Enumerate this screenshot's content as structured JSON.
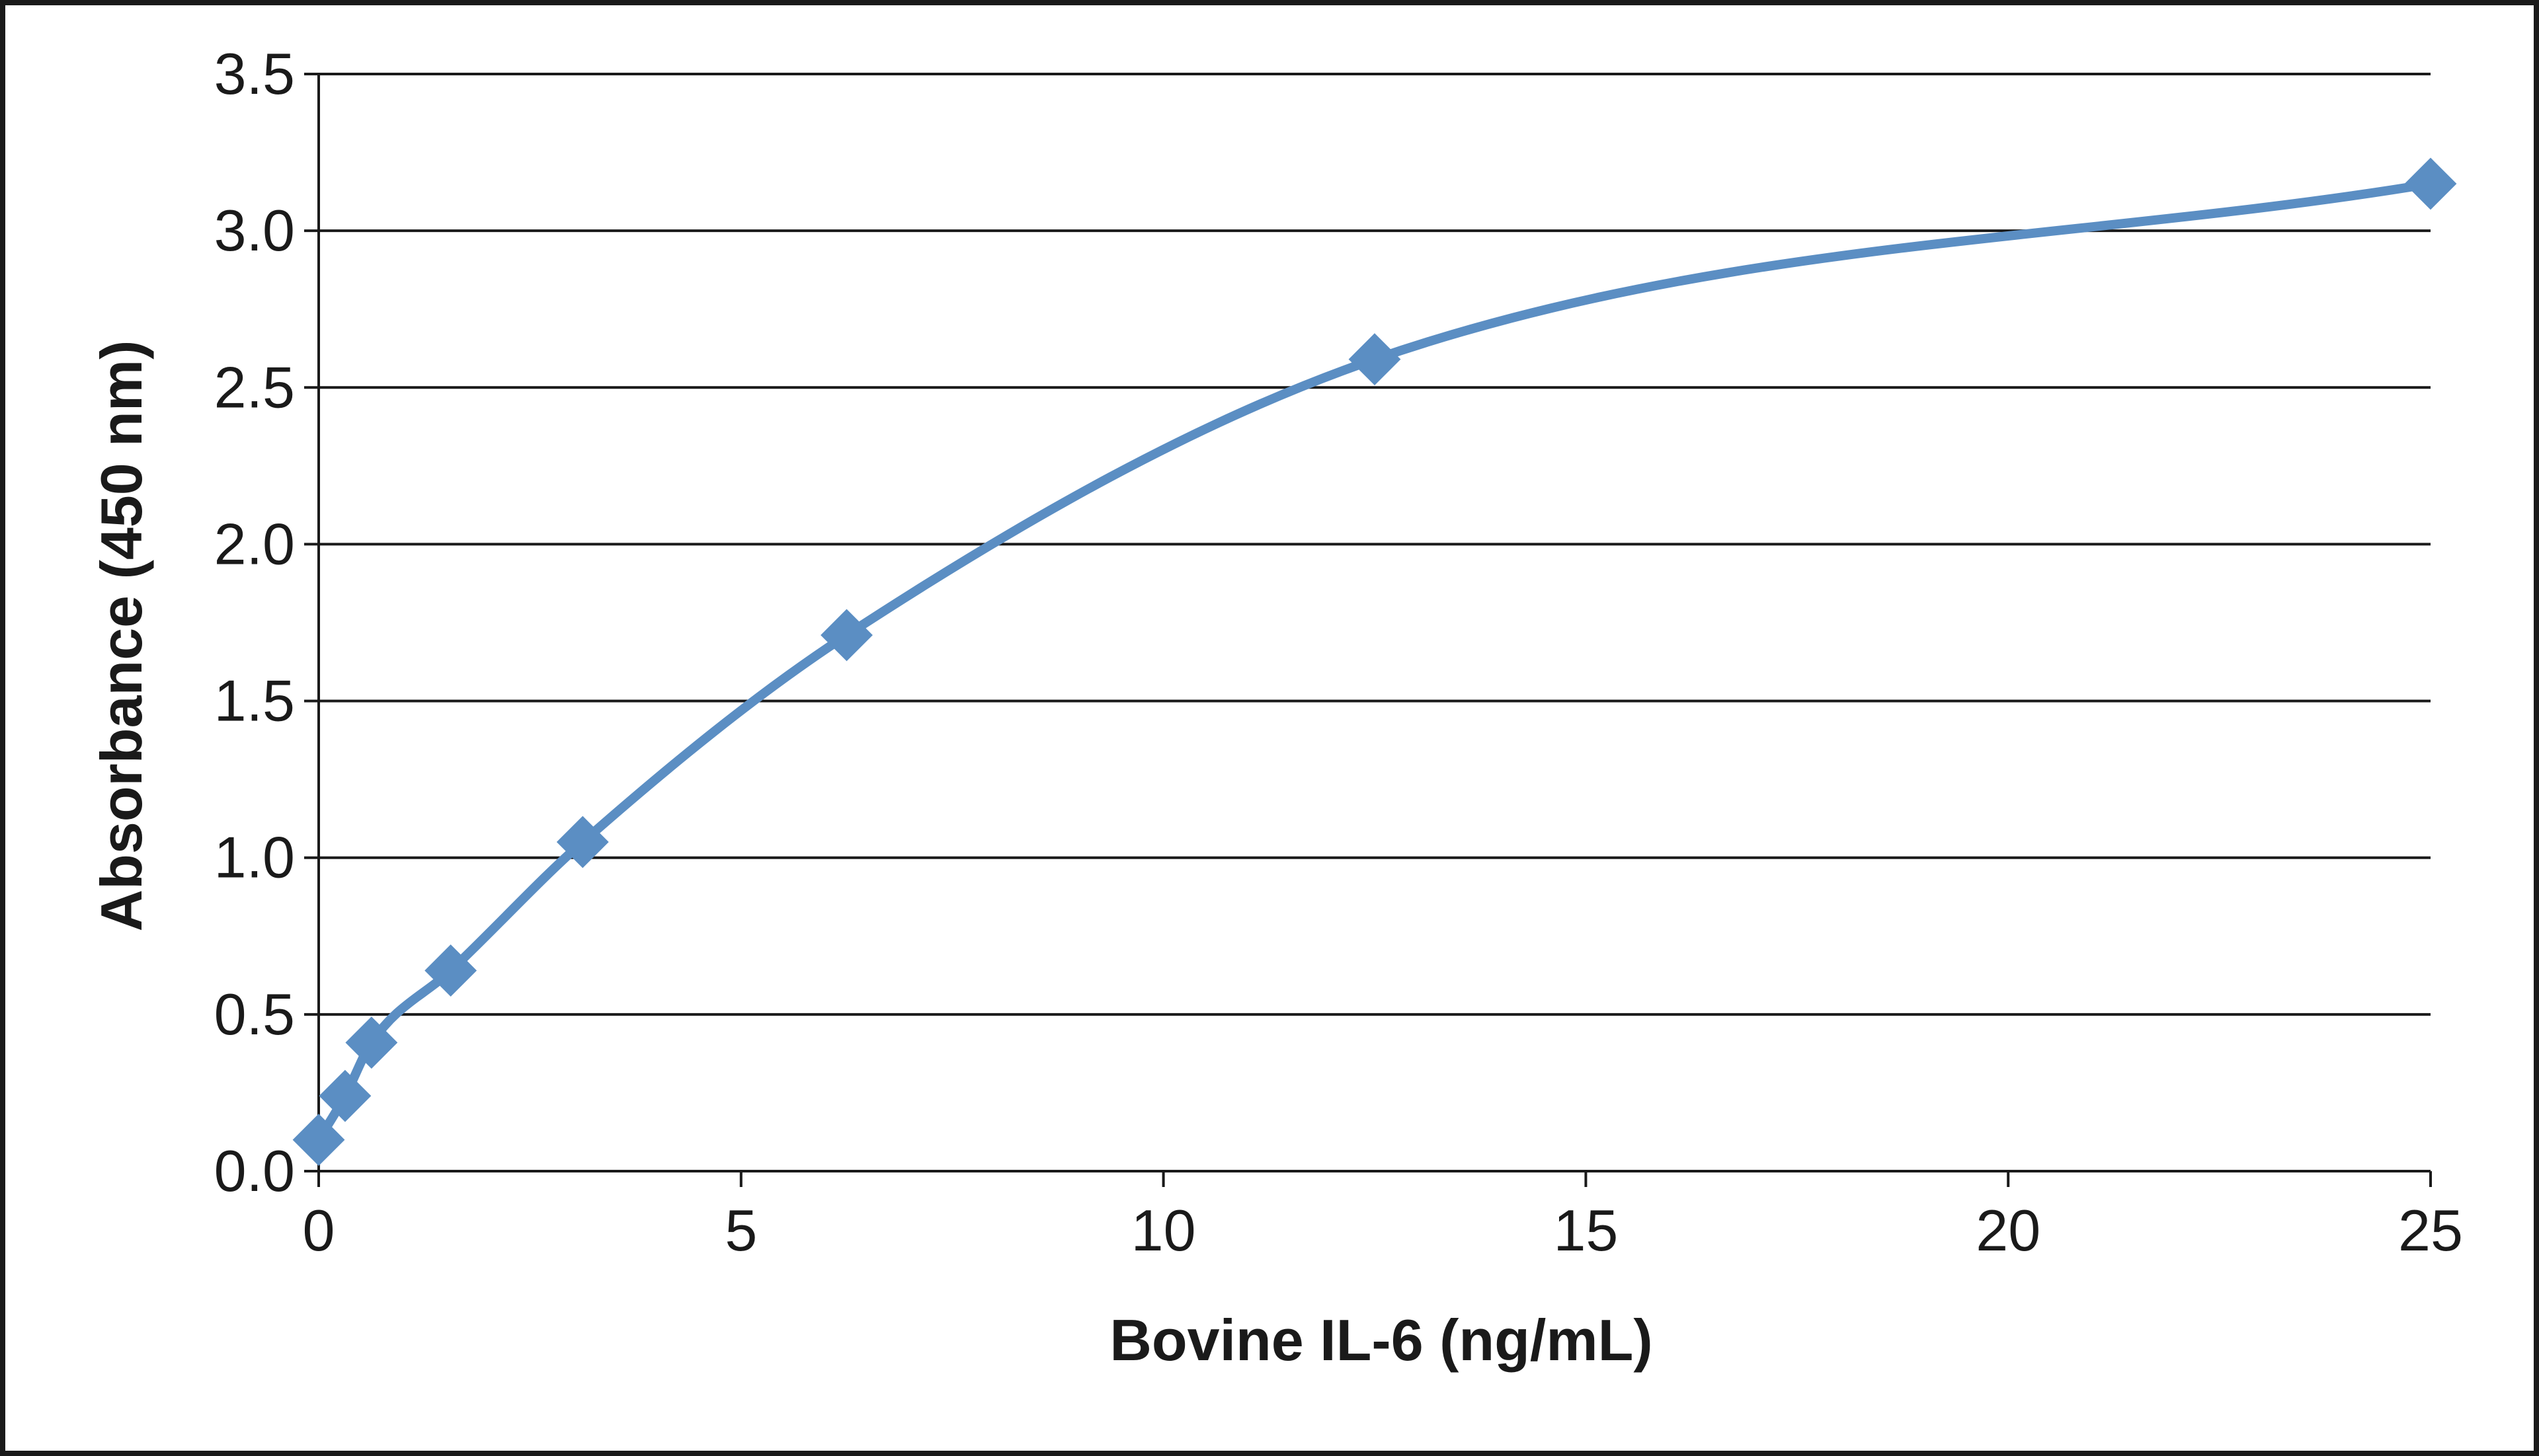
{
  "chart_data": {
    "type": "line",
    "title": "",
    "xlabel": "Bovine IL-6 (ng/mL)",
    "ylabel": "Absorbance  (450 nm)",
    "xlim": [
      0,
      25
    ],
    "ylim": [
      0,
      3.5
    ],
    "x_ticks": [
      "0",
      "5",
      "10",
      "15",
      "20",
      "25"
    ],
    "y_ticks": [
      "0.0",
      "0.5",
      "1.0",
      "1.5",
      "2.0",
      "2.5",
      "3.0",
      "3.5"
    ],
    "x_tick_values": [
      0,
      5,
      10,
      15,
      20,
      25
    ],
    "y_tick_values": [
      0,
      0.5,
      1.0,
      1.5,
      2.0,
      2.5,
      3.0,
      3.5
    ],
    "grid": {
      "horizontal": true,
      "vertical": false
    },
    "legend": "none",
    "smooth": true,
    "series": [
      {
        "marker": "diamond",
        "color": "#5B8EC3",
        "x": [
          0,
          0.3125,
          0.625,
          1.5625,
          3.125,
          6.25,
          12.5,
          25
        ],
        "y": [
          0.1,
          0.24,
          0.41,
          0.64,
          1.05,
          1.71,
          2.59,
          3.15
        ]
      }
    ]
  }
}
